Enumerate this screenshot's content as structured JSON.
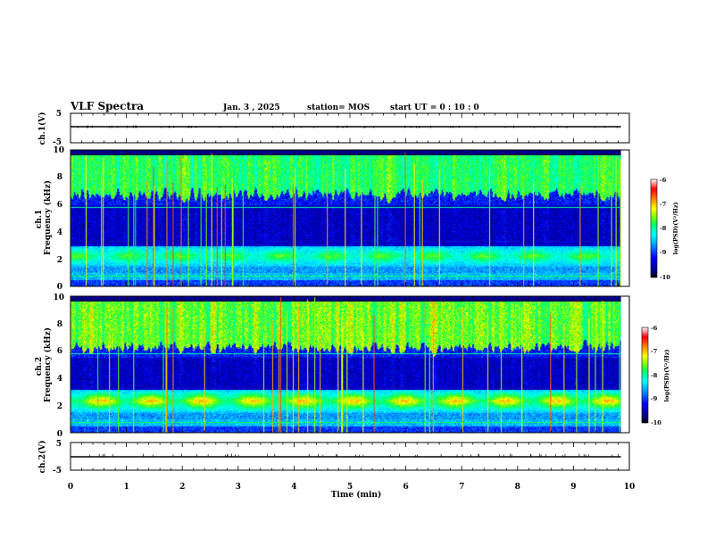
{
  "header": {
    "title": "VLF Spectra",
    "date": "Jan. 3 , 2025",
    "station": "station= MOS",
    "start": "start UT =  0 : 10 : 0"
  },
  "colors": {
    "colormap": [
      "#000000",
      "#000080",
      "#0000ff",
      "#00a0ff",
      "#00ffff",
      "#00ff60",
      "#80ff00",
      "#ffff00",
      "#ff8000",
      "#ff0000",
      "#ffffff"
    ]
  },
  "chart_data": [
    {
      "type": "line",
      "panel": "ch1-waveform",
      "ylabel": "ch.1(V)",
      "ylim": [
        -5,
        5
      ],
      "yticks": [
        "5",
        "-5"
      ],
      "xlim": [
        0,
        10
      ],
      "series": [
        {
          "x": [
            0,
            9.85
          ],
          "y": [
            0,
            0
          ]
        }
      ]
    },
    {
      "type": "heatmap",
      "panel": "ch1-spectrogram",
      "ylabel": "ch.1\nFrequency (kHz)",
      "ylim": [
        0,
        10
      ],
      "yticks": [
        "0",
        "2",
        "4",
        "6",
        "8",
        "10"
      ],
      "xlim": [
        0,
        10
      ],
      "data_end_min": 9.85,
      "bands_khz": [
        {
          "range": [
            6.0,
            9.7
          ],
          "level": "high (emissions)"
        },
        {
          "range": [
            1.5,
            3.0
          ],
          "level": "high (band)"
        },
        {
          "range": [
            0.5,
            1.0
          ],
          "level": "moderate"
        }
      ],
      "colorbar": {
        "label": "log(PSD)(V²/Hz)",
        "range": [
          -10,
          -6
        ],
        "ticks": [
          "-6",
          "-7",
          "-8",
          "-9",
          "-10"
        ]
      }
    },
    {
      "type": "heatmap",
      "panel": "ch2-spectrogram",
      "ylabel": "ch.2\nFrequency (kHz)",
      "ylim": [
        0,
        10
      ],
      "yticks": [
        "0",
        "2",
        "4",
        "6",
        "8",
        "10"
      ],
      "xlim": [
        0,
        10
      ],
      "data_end_min": 9.85,
      "bands_khz": [
        {
          "range": [
            5.5,
            9.7
          ],
          "level": "high (emissions)"
        },
        {
          "range": [
            1.5,
            3.2
          ],
          "level": "high (band)"
        },
        {
          "range": [
            0.5,
            1.0
          ],
          "level": "moderate"
        }
      ],
      "colorbar": {
        "label": "log(PSD)(V²/Hz)",
        "range": [
          -10,
          -6
        ],
        "ticks": [
          "-6",
          "-7",
          "-8",
          "-9",
          "-10"
        ]
      }
    },
    {
      "type": "line",
      "panel": "ch2-waveform",
      "ylabel": "ch.2(V)",
      "ylim": [
        -5,
        5
      ],
      "yticks": [
        "5",
        "-5"
      ],
      "xlim": [
        0,
        10
      ],
      "series": [
        {
          "x": [
            0,
            9.85
          ],
          "y": [
            0,
            0
          ]
        }
      ]
    }
  ],
  "xaxis": {
    "label": "Time (min)",
    "ticks": [
      "0",
      "1",
      "2",
      "3",
      "4",
      "5",
      "6",
      "7",
      "8",
      "9",
      "10"
    ]
  }
}
